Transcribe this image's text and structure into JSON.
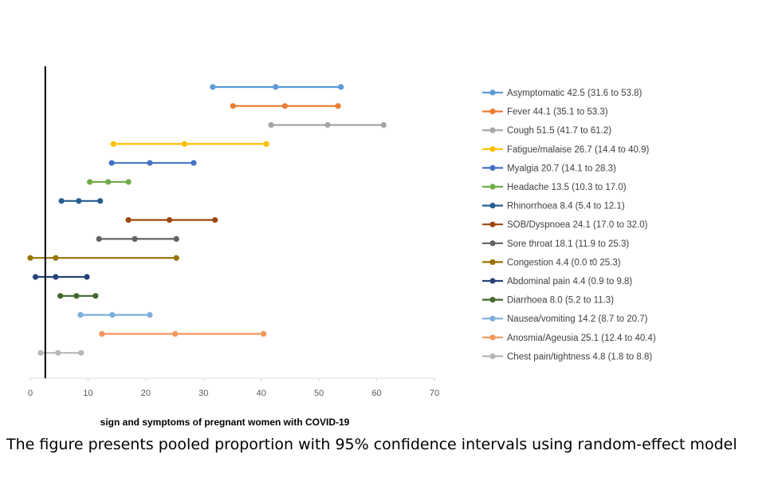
{
  "chart_data": {
    "type": "forest",
    "title": "",
    "xlabel": "sign and symptoms of pregnant women with COVID-19",
    "ylabel": "",
    "xlim": [
      0,
      70
    ],
    "x_ticks": [
      "0",
      "10",
      "20",
      "30",
      "40",
      "50",
      "60",
      "70"
    ],
    "reference_line_x": 2.6,
    "legend_position": "right",
    "series": [
      {
        "name": "Asymptomatic",
        "estimate": 42.5,
        "lower": 31.6,
        "upper": 53.8,
        "label": "Asymptomatic 42.5 (31.6 to 53.8)",
        "color": "#5B9BD5"
      },
      {
        "name": "Fever",
        "estimate": 44.1,
        "lower": 35.1,
        "upper": 53.3,
        "label": "Fever 44.1 (35.1 to 53.3)",
        "color": "#ED7D31"
      },
      {
        "name": "Cough",
        "estimate": 51.5,
        "lower": 41.7,
        "upper": 61.2,
        "label": "Cough 51.5 (41.7 to 61.2)",
        "color": "#A5A5A5"
      },
      {
        "name": "Fatigue/malaise",
        "estimate": 26.7,
        "lower": 14.4,
        "upper": 40.9,
        "label": "Fatigue/malaise 26.7 (14.4 to 40.9)",
        "color": "#FFC000"
      },
      {
        "name": "Myalgia",
        "estimate": 20.7,
        "lower": 14.1,
        "upper": 28.3,
        "label": "Myalgia 20.7 (14.1 to 28.3)",
        "color": "#4472C4"
      },
      {
        "name": "Headache",
        "estimate": 13.5,
        "lower": 10.3,
        "upper": 17.0,
        "label": "Headache 13.5 (10.3 to 17.0)",
        "color": "#70AD47"
      },
      {
        "name": "Rhinorrhoea",
        "estimate": 8.4,
        "lower": 5.4,
        "upper": 12.1,
        "label": "Rhinorrhoea 8.4 (5.4 to 12.1)",
        "color": "#255E91"
      },
      {
        "name": "SOB/Dyspnoea",
        "estimate": 24.1,
        "lower": 17.0,
        "upper": 32.0,
        "label": "SOB/Dyspnoea 24.1 (17.0 to 32.0)",
        "color": "#9E480E"
      },
      {
        "name": "Sore throat",
        "estimate": 18.1,
        "lower": 11.9,
        "upper": 25.3,
        "label": "Sore throat 18.1 (11.9 to 25.3)",
        "color": "#636363"
      },
      {
        "name": "Congestion",
        "estimate": 4.4,
        "lower": 0.0,
        "upper": 25.3,
        "label": "Congestion 4.4 (0.0 t0 25.3)",
        "color": "#997300"
      },
      {
        "name": "Abdominal pain",
        "estimate": 4.4,
        "lower": 0.9,
        "upper": 9.8,
        "label": "Abdominal pain 4.4 (0.9 to 9.8)",
        "color": "#264478"
      },
      {
        "name": "Diarrhoea",
        "estimate": 8.0,
        "lower": 5.2,
        "upper": 11.3,
        "label": "Diarrhoea 8.0 (5.2 to 11.3)",
        "color": "#43682B"
      },
      {
        "name": "Nausea/vomiting",
        "estimate": 14.2,
        "lower": 8.7,
        "upper": 20.7,
        "label": "Nausea/vomiting 14.2 (8.7 to 20.7)",
        "color": "#7CAFDD"
      },
      {
        "name": "Anosmia/Ageusia",
        "estimate": 25.1,
        "lower": 12.4,
        "upper": 40.4,
        "label": "Anosmia/Ageusia 25.1 (12.4 to 40.4)",
        "color": "#F1975A"
      },
      {
        "name": "Chest pain/tightness",
        "estimate": 4.8,
        "lower": 1.8,
        "upper": 8.8,
        "label": "Chest pain/tightness 4.8 (1.8 to 8.8)",
        "color": "#B7B7B7"
      }
    ]
  },
  "caption": "The figure presents pooled proportion with 95% confidence intervals using random-effect model"
}
